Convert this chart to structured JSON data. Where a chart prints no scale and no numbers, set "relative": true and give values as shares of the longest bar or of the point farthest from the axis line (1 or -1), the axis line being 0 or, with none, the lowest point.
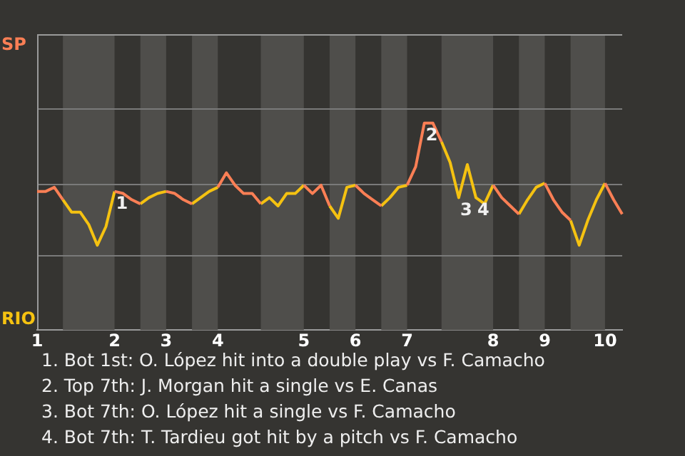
{
  "chart_data": {
    "type": "line",
    "categories": [
      "1",
      null,
      null,
      null,
      null,
      null,
      null,
      null,
      null,
      "2",
      null,
      null,
      null,
      null,
      null,
      "3",
      null,
      null,
      null,
      null,
      null,
      "4",
      null,
      null,
      null,
      null,
      null,
      null,
      null,
      null,
      null,
      "5",
      null,
      null,
      null,
      null,
      null,
      "6",
      null,
      null,
      null,
      null,
      null,
      "7",
      null,
      null,
      null,
      null,
      null,
      null,
      null,
      null,
      null,
      "8",
      null,
      null,
      null,
      null,
      null,
      "9",
      null,
      null,
      null,
      null,
      null,
      null,
      "10",
      null,
      null
    ],
    "relative": true,
    "series": [
      {
        "name": "SP",
        "color": "#fa7f55",
        "values": [
          0.67,
          0.67,
          0.69,
          0.63,
          null,
          null,
          null,
          null,
          null,
          0.67,
          0.66,
          0.63,
          0.61,
          null,
          null,
          0.67,
          0.66,
          0.63,
          0.61,
          null,
          null,
          0.69,
          0.76,
          0.7,
          0.66,
          0.66,
          0.61,
          null,
          null,
          null,
          null,
          0.7,
          0.66,
          0.7,
          0.6,
          null,
          null,
          0.7,
          0.66,
          0.63,
          0.6,
          null,
          null,
          0.7,
          0.79,
          1,
          1,
          0.91,
          null,
          null,
          null,
          null,
          null,
          0.7,
          0.64,
          0.6,
          0.56,
          null,
          null,
          0.71,
          0.63,
          0.57,
          0.53,
          null,
          null,
          null,
          0.71,
          0.63,
          0.56
        ]
      },
      {
        "name": "RIO",
        "color": "#f5c211",
        "values": [
          null,
          null,
          null,
          0.63,
          0.57,
          0.57,
          0.51,
          0.41,
          0.5,
          0.67,
          null,
          null,
          0.61,
          0.64,
          0.66,
          0.67,
          null,
          null,
          0.61,
          0.64,
          0.67,
          0.69,
          null,
          null,
          null,
          null,
          0.61,
          0.64,
          0.6,
          0.66,
          0.66,
          0.7,
          null,
          null,
          0.6,
          0.54,
          0.69,
          0.7,
          null,
          null,
          0.6,
          0.64,
          0.69,
          0.7,
          null,
          null,
          null,
          0.91,
          0.81,
          0.64,
          0.8,
          0.64,
          0.61,
          0.7,
          null,
          null,
          0.56,
          0.63,
          0.69,
          0.71,
          null,
          null,
          0.53,
          0.41,
          0.53,
          0.63,
          0.71,
          null,
          null
        ]
      }
    ],
    "ref_lines": [
      {
        "axis": "y",
        "value": 0.36,
        "color": "#7a7a7a"
      },
      {
        "axis": "y",
        "value": 0.71,
        "color": "#7a7a7a"
      },
      {
        "axis": "y",
        "value": 1.07,
        "color": "#7a7a7a"
      }
    ],
    "legend": "left",
    "marker": "none",
    "annotations": [
      {
        "text": "1",
        "x": "2",
        "y": 0.67
      },
      {
        "text": "2",
        "y": 1
      },
      {
        "text": "3",
        "y": 0.64
      },
      {
        "text": "4",
        "y": 0.64
      },
      "1. Bot 1st: O. López hit into a double play vs F. Camacho",
      "2. Top 7th: J. Morgan hit a single vs E. Canas",
      "3. Bot 7th: O. López hit a single vs F. Camacho",
      "4. Bot 7th: T. Tardieu got hit by a pitch vs F. Camacho"
    ]
  }
}
